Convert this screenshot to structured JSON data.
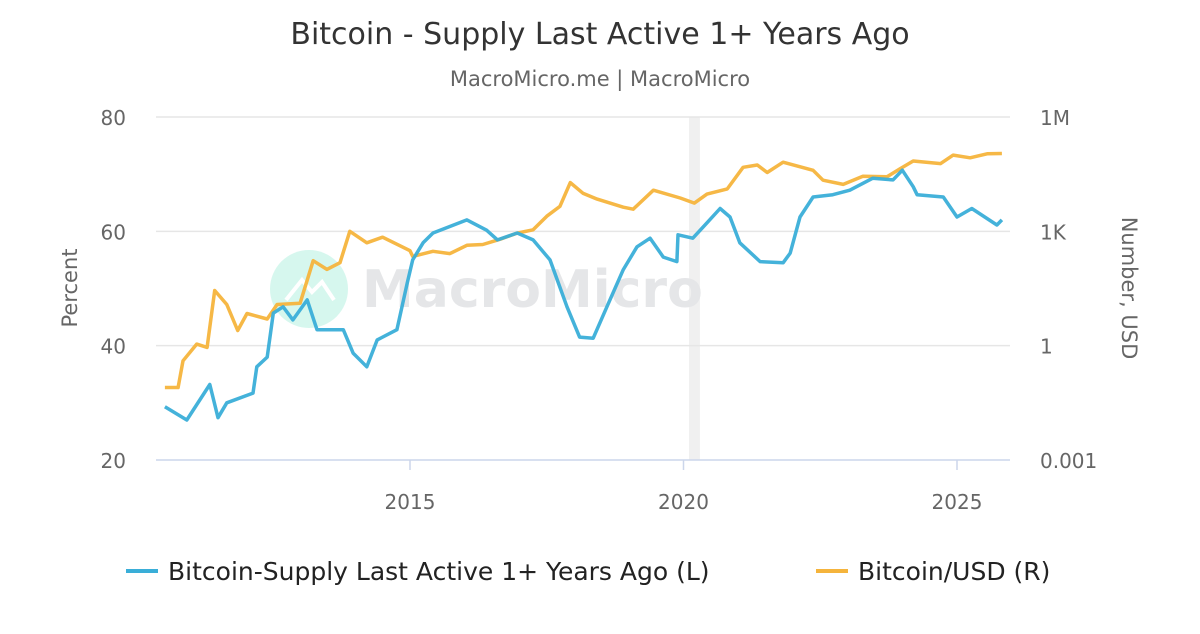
{
  "chart_data": {
    "type": "line",
    "title": "Bitcoin - Supply Last Active 1+ Years Ago",
    "subtitle": "MacroMicro.me | MacroMicro",
    "watermark": "MacroMicro",
    "x_ticks": [
      "2015",
      "2020",
      "2025"
    ],
    "x_range": [
      2010.0,
      2025.95
    ],
    "left_axis": {
      "label": "Percent",
      "range": [
        20,
        80
      ],
      "ticks": [
        "20",
        "40",
        "60",
        "80"
      ]
    },
    "right_axis": {
      "label": "Number, USD",
      "scale": "log",
      "range": [
        0.001,
        1000000
      ],
      "ticks": [
        "0.001",
        "1",
        "1K",
        "1M"
      ]
    },
    "grid": true,
    "legend_position": "bottom",
    "shaded_periods": [
      [
        2020.1,
        2020.3
      ]
    ],
    "series": [
      {
        "name": "Bitcoin-Supply Last Active 1+ Years Ago (L)",
        "axis": "left",
        "color": "#3aaed8",
        "points": [
          [
            2010.52,
            29.3
          ],
          [
            2010.92,
            27
          ],
          [
            2011.34,
            33.2
          ],
          [
            2011.49,
            27.4
          ],
          [
            2011.65,
            30
          ],
          [
            2012.13,
            31.7
          ],
          [
            2012.2,
            36.3
          ],
          [
            2012.39,
            38
          ],
          [
            2012.5,
            45.7
          ],
          [
            2012.68,
            46.8
          ],
          [
            2012.86,
            44.5
          ],
          [
            2013.12,
            48
          ],
          [
            2013.3,
            42.8
          ],
          [
            2013.78,
            42.8
          ],
          [
            2013.96,
            38.7
          ],
          [
            2014.21,
            36.3
          ],
          [
            2014.4,
            41
          ],
          [
            2014.76,
            42.8
          ],
          [
            2014.95,
            51
          ],
          [
            2015.05,
            55
          ],
          [
            2015.24,
            58
          ],
          [
            2015.42,
            59.7
          ],
          [
            2016.04,
            62
          ],
          [
            2016.4,
            60.2
          ],
          [
            2016.6,
            58.5
          ],
          [
            2016.96,
            59.7
          ],
          [
            2017.25,
            58.5
          ],
          [
            2017.56,
            55
          ],
          [
            2017.87,
            46.8
          ],
          [
            2018.1,
            41.5
          ],
          [
            2018.35,
            41.3
          ],
          [
            2018.6,
            46.8
          ],
          [
            2018.9,
            53.3
          ],
          [
            2019.15,
            57.3
          ],
          [
            2019.39,
            58.8
          ],
          [
            2019.63,
            55.5
          ],
          [
            2019.88,
            54.7
          ],
          [
            2019.9,
            59.4
          ],
          [
            2020.17,
            58.8
          ],
          [
            2020.43,
            61.5
          ],
          [
            2020.67,
            64
          ],
          [
            2020.85,
            62.5
          ],
          [
            2021.03,
            58
          ],
          [
            2021.4,
            54.7
          ],
          [
            2021.82,
            54.5
          ],
          [
            2021.95,
            56.2
          ],
          [
            2022.13,
            62.5
          ],
          [
            2022.37,
            66
          ],
          [
            2022.73,
            66.4
          ],
          [
            2023.04,
            67.2
          ],
          [
            2023.46,
            69.3
          ],
          [
            2023.83,
            69
          ],
          [
            2024.0,
            70.7
          ],
          [
            2024.2,
            67.8
          ],
          [
            2024.27,
            66.4
          ],
          [
            2024.75,
            66
          ],
          [
            2025.0,
            62.5
          ],
          [
            2025.27,
            64
          ],
          [
            2025.73,
            61.1
          ],
          [
            2025.82,
            62
          ]
        ]
      },
      {
        "name": "Bitcoin/USD (R)",
        "axis": "right",
        "color": "#f5b43c",
        "points": [
          [
            2010.52,
            0.08
          ],
          [
            2010.76,
            0.08
          ],
          [
            2010.85,
            0.4
          ],
          [
            2011.1,
            1.1
          ],
          [
            2011.29,
            0.9
          ],
          [
            2011.43,
            28
          ],
          [
            2011.65,
            12
          ],
          [
            2011.85,
            2.5
          ],
          [
            2012.02,
            7
          ],
          [
            2012.39,
            5
          ],
          [
            2012.57,
            12
          ],
          [
            2012.99,
            13
          ],
          [
            2013.23,
            170
          ],
          [
            2013.48,
            100
          ],
          [
            2013.72,
            150
          ],
          [
            2013.9,
            1000
          ],
          [
            2014.21,
            500
          ],
          [
            2014.5,
            700
          ],
          [
            2015.0,
            310
          ],
          [
            2015.05,
            220
          ],
          [
            2015.42,
            300
          ],
          [
            2015.73,
            260
          ],
          [
            2016.04,
            430
          ],
          [
            2016.33,
            450
          ],
          [
            2016.65,
            620
          ],
          [
            2016.96,
            900
          ],
          [
            2017.25,
            1100
          ],
          [
            2017.5,
            2500
          ],
          [
            2017.74,
            4500
          ],
          [
            2017.93,
            19000
          ],
          [
            2018.16,
            10000
          ],
          [
            2018.42,
            7000
          ],
          [
            2018.9,
            4300
          ],
          [
            2019.08,
            3800
          ],
          [
            2019.45,
            12000
          ],
          [
            2019.94,
            7500
          ],
          [
            2020.2,
            5500
          ],
          [
            2020.43,
            9500
          ],
          [
            2020.8,
            13000
          ],
          [
            2021.09,
            48000
          ],
          [
            2021.35,
            55000
          ],
          [
            2021.53,
            35000
          ],
          [
            2021.82,
            65000
          ],
          [
            2022.37,
            40000
          ],
          [
            2022.55,
            22000
          ],
          [
            2022.92,
            17000
          ],
          [
            2023.28,
            28000
          ],
          [
            2023.72,
            27000
          ],
          [
            2023.96,
            44000
          ],
          [
            2024.2,
            70000
          ],
          [
            2024.7,
            60000
          ],
          [
            2024.93,
            100000
          ],
          [
            2025.24,
            85000
          ],
          [
            2025.55,
            108000
          ],
          [
            2025.82,
            110000
          ]
        ]
      }
    ]
  }
}
